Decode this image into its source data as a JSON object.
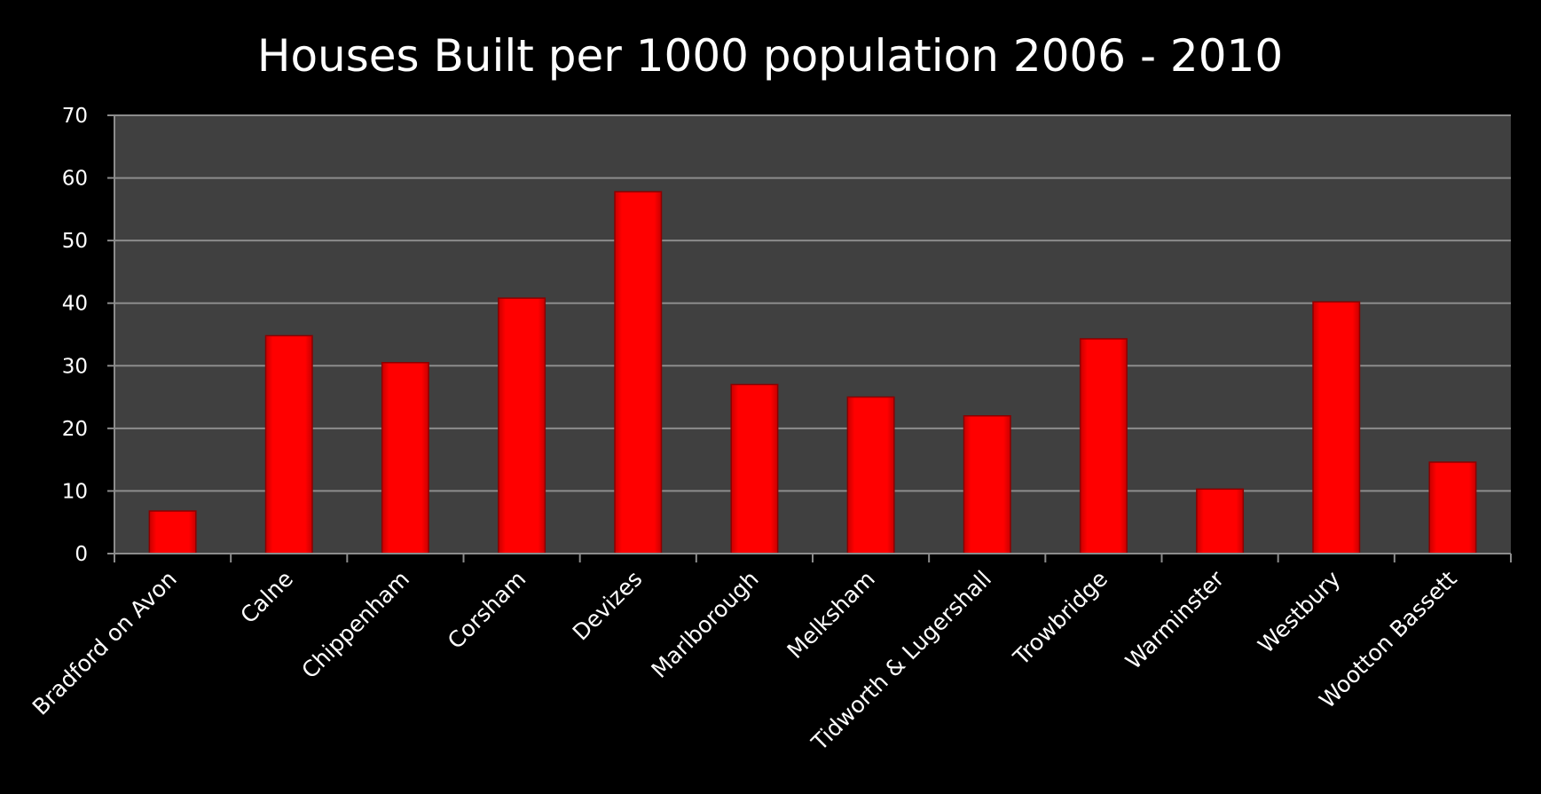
{
  "chart_data": {
    "type": "bar",
    "title": "Houses Built per 1000 population 2006 - 2010",
    "xlabel": "",
    "ylabel": "",
    "categories": [
      "Bradford on Avon",
      "Calne",
      "Chippenham",
      "Corsham",
      "Devizes",
      "Marlborough",
      "Melksham",
      "Tidworth & Lugershall",
      "Trowbridge",
      "Warminster",
      "Westbury",
      "Wootton Bassett"
    ],
    "values": [
      6.8,
      34.8,
      30.5,
      40.8,
      57.8,
      27.0,
      25.0,
      22.0,
      34.3,
      10.3,
      40.2,
      14.6
    ],
    "ylim": [
      0,
      70
    ],
    "yticks": [
      "0",
      "10",
      "20",
      "30",
      "40",
      "50",
      "60",
      "70"
    ],
    "grid": true,
    "legend": "none",
    "colors": {
      "background": "#000000",
      "plot_area": "#404040",
      "bar": "#ff0000",
      "gridline": "#8c8c8c",
      "text": "#ffffff"
    }
  }
}
